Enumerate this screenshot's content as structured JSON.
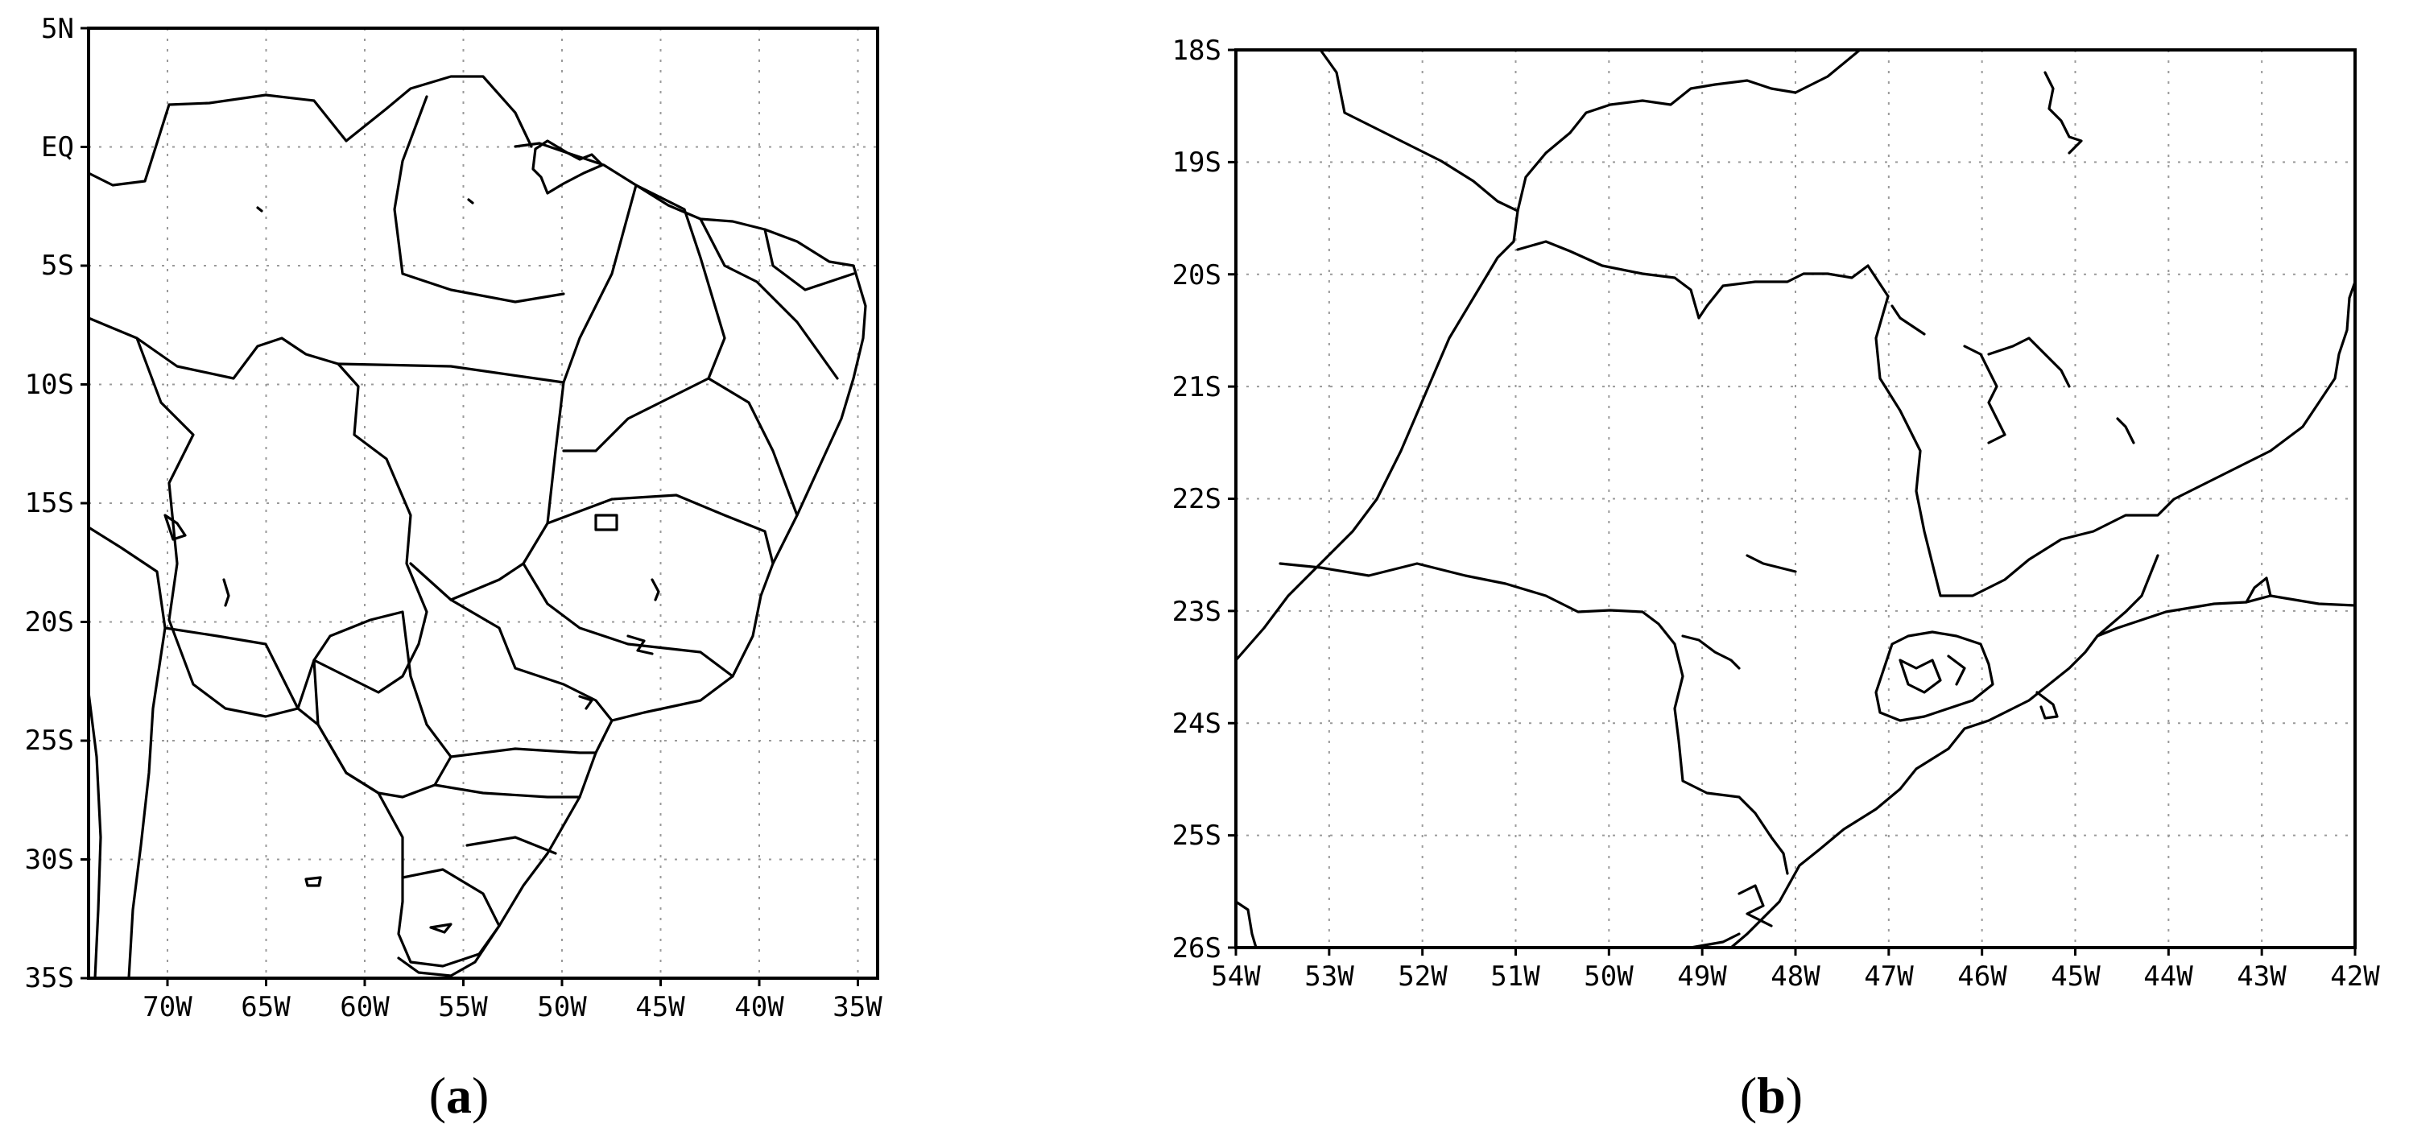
{
  "maps": [
    {
      "id": "a",
      "caption_prefix": "(",
      "caption_letter": "a",
      "caption_suffix": ")",
      "lon_range_deg": [
        -74,
        -34
      ],
      "lat_range_deg": [
        -35,
        5
      ],
      "lat_labels": [
        "5N",
        "EQ",
        "5S",
        "10S",
        "15S",
        "20S",
        "25S",
        "30S",
        "35S"
      ],
      "lon_labels": [
        "70W",
        "65W",
        "60W",
        "55W",
        "50W",
        "45W",
        "40W",
        "35W"
      ],
      "gridlines": true
    },
    {
      "id": "b",
      "caption_prefix": "(",
      "caption_letter": "b",
      "caption_suffix": ")",
      "lon_range_deg": [
        -54,
        -42
      ],
      "lat_range_deg": [
        -26,
        -18
      ],
      "lat_labels": [
        "18S",
        "19S",
        "20S",
        "21S",
        "22S",
        "23S",
        "24S",
        "25S",
        "26S"
      ],
      "lon_labels": [
        "54W",
        "53W",
        "52W",
        "51W",
        "50W",
        "49W",
        "48W",
        "47W",
        "46W",
        "45W",
        "44W",
        "43W",
        "42W"
      ],
      "gridlines": true
    }
  ]
}
